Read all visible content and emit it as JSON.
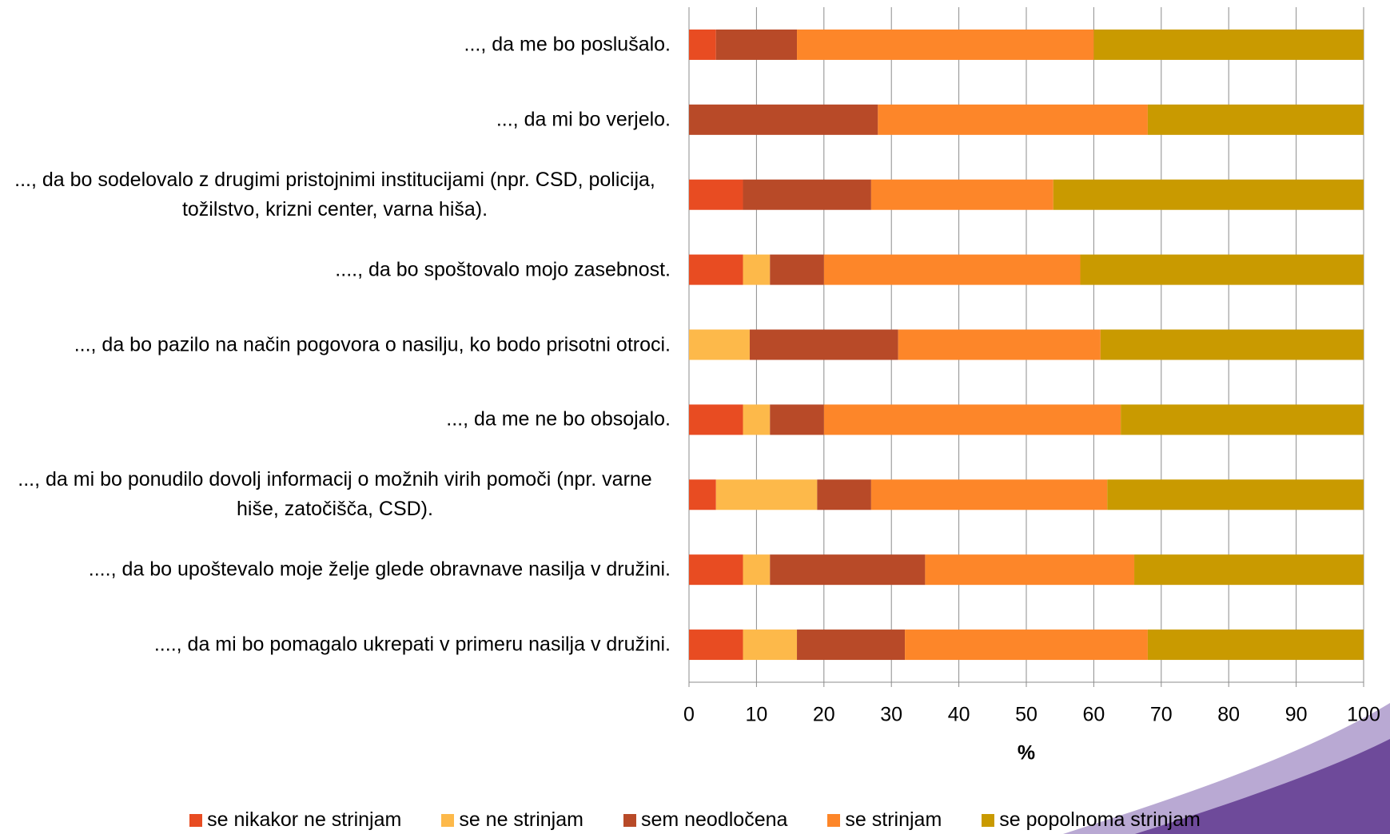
{
  "chart_data": {
    "type": "stacked-bar-horizontal",
    "categories": [
      "..., da me bo poslušalo.",
      "..., da mi bo  verjelo.",
      "..., da bo  sodelovalo z drugimi pristojnimi institucijami (npr. CSD, policija, tožilstvo, krizni center, varna hiša).",
      "...., da bo  spoštovalo mojo zasebnost.",
      "..., da bo pazilo na način pogovora o nasilju, ko bodo prisotni otroci.",
      "..., da me  ne bo obsojalo.",
      "..., da mi bo ponudilo dovolj informacij o možnih virih pomoči (npr. varne hiše, zatočišča, CSD).",
      "...., da bo upoštevalo moje želje glede obravnave nasilja v družini.",
      "...., da mi bo  pomagalo ukrepati v primeru nasilja v družini."
    ],
    "series": [
      {
        "name": "se nikakor ne strinjam",
        "color": "#e84c22",
        "values": [
          4,
          0,
          8,
          8,
          0,
          8,
          4,
          8,
          8
        ]
      },
      {
        "name": "se ne strinjam",
        "color": "#fdb94a",
        "values": [
          0,
          0,
          0,
          4,
          9,
          4,
          15,
          4,
          8
        ]
      },
      {
        "name": "sem neodločena",
        "color": "#b84a28",
        "values": [
          12,
          28,
          19,
          8,
          22,
          8,
          8,
          23,
          16
        ]
      },
      {
        "name": "se strinjam",
        "color": "#fd8629",
        "values": [
          44,
          40,
          27,
          38,
          30,
          44,
          35,
          31,
          36
        ]
      },
      {
        "name": "se popolnoma strinjam",
        "color": "#c99a00",
        "values": [
          40,
          32,
          46,
          42,
          39,
          36,
          38,
          34,
          32
        ]
      }
    ],
    "xlabel": "%",
    "xlim": [
      0,
      100
    ],
    "xticks": [
      0,
      10,
      20,
      30,
      40,
      50,
      60,
      70,
      80,
      90,
      100
    ],
    "grid": true,
    "legend": "bottom"
  }
}
